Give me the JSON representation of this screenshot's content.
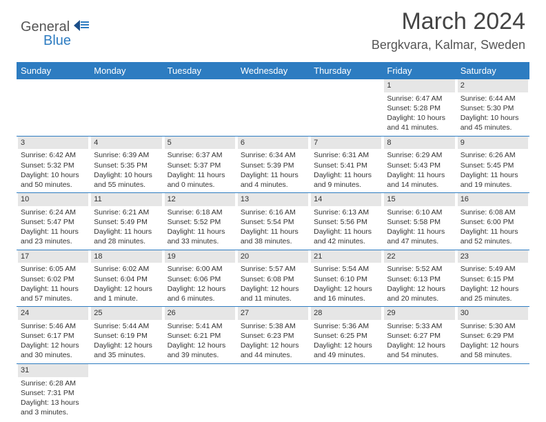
{
  "logo": {
    "text1": "General",
    "text2": "Blue"
  },
  "title": "March 2024",
  "location": "Bergkvara, Kalmar, Sweden",
  "header_bg": "#2d7cc1",
  "day_bg": "#e6e6e6",
  "weekdays": [
    "Sunday",
    "Monday",
    "Tuesday",
    "Wednesday",
    "Thursday",
    "Friday",
    "Saturday"
  ],
  "weeks": [
    [
      {
        "n": "",
        "sr": "",
        "ss": "",
        "dl1": "",
        "dl2": ""
      },
      {
        "n": "",
        "sr": "",
        "ss": "",
        "dl1": "",
        "dl2": ""
      },
      {
        "n": "",
        "sr": "",
        "ss": "",
        "dl1": "",
        "dl2": ""
      },
      {
        "n": "",
        "sr": "",
        "ss": "",
        "dl1": "",
        "dl2": ""
      },
      {
        "n": "",
        "sr": "",
        "ss": "",
        "dl1": "",
        "dl2": ""
      },
      {
        "n": "1",
        "sr": "Sunrise: 6:47 AM",
        "ss": "Sunset: 5:28 PM",
        "dl1": "Daylight: 10 hours",
        "dl2": "and 41 minutes."
      },
      {
        "n": "2",
        "sr": "Sunrise: 6:44 AM",
        "ss": "Sunset: 5:30 PM",
        "dl1": "Daylight: 10 hours",
        "dl2": "and 45 minutes."
      }
    ],
    [
      {
        "n": "3",
        "sr": "Sunrise: 6:42 AM",
        "ss": "Sunset: 5:32 PM",
        "dl1": "Daylight: 10 hours",
        "dl2": "and 50 minutes."
      },
      {
        "n": "4",
        "sr": "Sunrise: 6:39 AM",
        "ss": "Sunset: 5:35 PM",
        "dl1": "Daylight: 10 hours",
        "dl2": "and 55 minutes."
      },
      {
        "n": "5",
        "sr": "Sunrise: 6:37 AM",
        "ss": "Sunset: 5:37 PM",
        "dl1": "Daylight: 11 hours",
        "dl2": "and 0 minutes."
      },
      {
        "n": "6",
        "sr": "Sunrise: 6:34 AM",
        "ss": "Sunset: 5:39 PM",
        "dl1": "Daylight: 11 hours",
        "dl2": "and 4 minutes."
      },
      {
        "n": "7",
        "sr": "Sunrise: 6:31 AM",
        "ss": "Sunset: 5:41 PM",
        "dl1": "Daylight: 11 hours",
        "dl2": "and 9 minutes."
      },
      {
        "n": "8",
        "sr": "Sunrise: 6:29 AM",
        "ss": "Sunset: 5:43 PM",
        "dl1": "Daylight: 11 hours",
        "dl2": "and 14 minutes."
      },
      {
        "n": "9",
        "sr": "Sunrise: 6:26 AM",
        "ss": "Sunset: 5:45 PM",
        "dl1": "Daylight: 11 hours",
        "dl2": "and 19 minutes."
      }
    ],
    [
      {
        "n": "10",
        "sr": "Sunrise: 6:24 AM",
        "ss": "Sunset: 5:47 PM",
        "dl1": "Daylight: 11 hours",
        "dl2": "and 23 minutes."
      },
      {
        "n": "11",
        "sr": "Sunrise: 6:21 AM",
        "ss": "Sunset: 5:49 PM",
        "dl1": "Daylight: 11 hours",
        "dl2": "and 28 minutes."
      },
      {
        "n": "12",
        "sr": "Sunrise: 6:18 AM",
        "ss": "Sunset: 5:52 PM",
        "dl1": "Daylight: 11 hours",
        "dl2": "and 33 minutes."
      },
      {
        "n": "13",
        "sr": "Sunrise: 6:16 AM",
        "ss": "Sunset: 5:54 PM",
        "dl1": "Daylight: 11 hours",
        "dl2": "and 38 minutes."
      },
      {
        "n": "14",
        "sr": "Sunrise: 6:13 AM",
        "ss": "Sunset: 5:56 PM",
        "dl1": "Daylight: 11 hours",
        "dl2": "and 42 minutes."
      },
      {
        "n": "15",
        "sr": "Sunrise: 6:10 AM",
        "ss": "Sunset: 5:58 PM",
        "dl1": "Daylight: 11 hours",
        "dl2": "and 47 minutes."
      },
      {
        "n": "16",
        "sr": "Sunrise: 6:08 AM",
        "ss": "Sunset: 6:00 PM",
        "dl1": "Daylight: 11 hours",
        "dl2": "and 52 minutes."
      }
    ],
    [
      {
        "n": "17",
        "sr": "Sunrise: 6:05 AM",
        "ss": "Sunset: 6:02 PM",
        "dl1": "Daylight: 11 hours",
        "dl2": "and 57 minutes."
      },
      {
        "n": "18",
        "sr": "Sunrise: 6:02 AM",
        "ss": "Sunset: 6:04 PM",
        "dl1": "Daylight: 12 hours",
        "dl2": "and 1 minute."
      },
      {
        "n": "19",
        "sr": "Sunrise: 6:00 AM",
        "ss": "Sunset: 6:06 PM",
        "dl1": "Daylight: 12 hours",
        "dl2": "and 6 minutes."
      },
      {
        "n": "20",
        "sr": "Sunrise: 5:57 AM",
        "ss": "Sunset: 6:08 PM",
        "dl1": "Daylight: 12 hours",
        "dl2": "and 11 minutes."
      },
      {
        "n": "21",
        "sr": "Sunrise: 5:54 AM",
        "ss": "Sunset: 6:10 PM",
        "dl1": "Daylight: 12 hours",
        "dl2": "and 16 minutes."
      },
      {
        "n": "22",
        "sr": "Sunrise: 5:52 AM",
        "ss": "Sunset: 6:13 PM",
        "dl1": "Daylight: 12 hours",
        "dl2": "and 20 minutes."
      },
      {
        "n": "23",
        "sr": "Sunrise: 5:49 AM",
        "ss": "Sunset: 6:15 PM",
        "dl1": "Daylight: 12 hours",
        "dl2": "and 25 minutes."
      }
    ],
    [
      {
        "n": "24",
        "sr": "Sunrise: 5:46 AM",
        "ss": "Sunset: 6:17 PM",
        "dl1": "Daylight: 12 hours",
        "dl2": "and 30 minutes."
      },
      {
        "n": "25",
        "sr": "Sunrise: 5:44 AM",
        "ss": "Sunset: 6:19 PM",
        "dl1": "Daylight: 12 hours",
        "dl2": "and 35 minutes."
      },
      {
        "n": "26",
        "sr": "Sunrise: 5:41 AM",
        "ss": "Sunset: 6:21 PM",
        "dl1": "Daylight: 12 hours",
        "dl2": "and 39 minutes."
      },
      {
        "n": "27",
        "sr": "Sunrise: 5:38 AM",
        "ss": "Sunset: 6:23 PM",
        "dl1": "Daylight: 12 hours",
        "dl2": "and 44 minutes."
      },
      {
        "n": "28",
        "sr": "Sunrise: 5:36 AM",
        "ss": "Sunset: 6:25 PM",
        "dl1": "Daylight: 12 hours",
        "dl2": "and 49 minutes."
      },
      {
        "n": "29",
        "sr": "Sunrise: 5:33 AM",
        "ss": "Sunset: 6:27 PM",
        "dl1": "Daylight: 12 hours",
        "dl2": "and 54 minutes."
      },
      {
        "n": "30",
        "sr": "Sunrise: 5:30 AM",
        "ss": "Sunset: 6:29 PM",
        "dl1": "Daylight: 12 hours",
        "dl2": "and 58 minutes."
      }
    ],
    [
      {
        "n": "31",
        "sr": "Sunrise: 6:28 AM",
        "ss": "Sunset: 7:31 PM",
        "dl1": "Daylight: 13 hours",
        "dl2": "and 3 minutes."
      },
      {
        "n": "",
        "sr": "",
        "ss": "",
        "dl1": "",
        "dl2": ""
      },
      {
        "n": "",
        "sr": "",
        "ss": "",
        "dl1": "",
        "dl2": ""
      },
      {
        "n": "",
        "sr": "",
        "ss": "",
        "dl1": "",
        "dl2": ""
      },
      {
        "n": "",
        "sr": "",
        "ss": "",
        "dl1": "",
        "dl2": ""
      },
      {
        "n": "",
        "sr": "",
        "ss": "",
        "dl1": "",
        "dl2": ""
      },
      {
        "n": "",
        "sr": "",
        "ss": "",
        "dl1": "",
        "dl2": ""
      }
    ]
  ]
}
